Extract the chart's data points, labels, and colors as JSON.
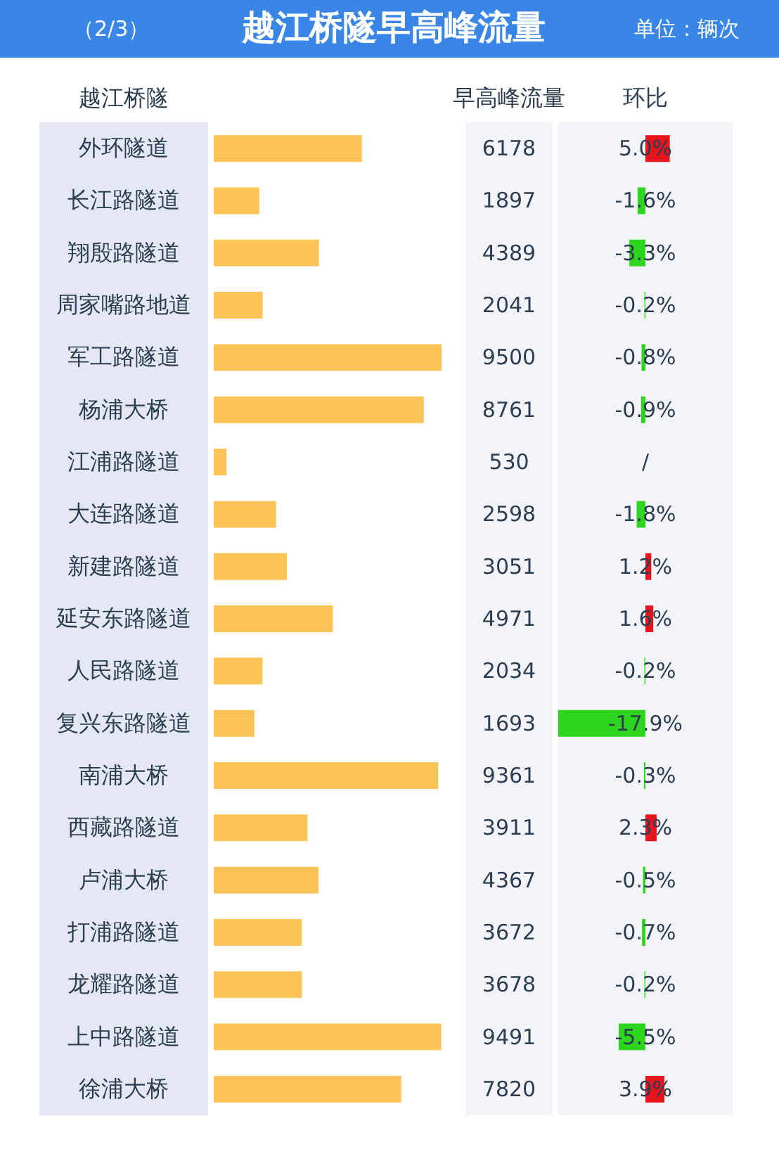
{
  "chart_data": [
    {
      "type": "bar",
      "orientation": "horizontal",
      "title": "越江桥隧早高峰流量",
      "annotations": [
        "（2/3）",
        "单位：辆次"
      ],
      "ylabel": "越江桥隧",
      "xlabel": "早高峰流量",
      "categories": [
        "外环隧道",
        "长江路隧道",
        "翔殷路隧道",
        "周家嘴路地道",
        "军工路隧道",
        "杨浦大桥",
        "江浦路隧道",
        "大连路隧道",
        "新建路隧道",
        "延安东路隧道",
        "人民路隧道",
        "复兴东路隧道",
        "南浦大桥",
        "西藏路隧道",
        "卢浦大桥",
        "打浦路隧道",
        "龙耀路隧道",
        "上中路隧道",
        "徐浦大桥"
      ],
      "values": [
        6178,
        1897,
        4389,
        2041,
        9500,
        8761,
        530,
        2598,
        3051,
        4971,
        2034,
        1693,
        9361,
        3911,
        4367,
        3672,
        3678,
        9491,
        7820
      ],
      "color": "#fcc357",
      "data_labels": true,
      "tick_labels": "y"
    },
    {
      "type": "bar",
      "orientation": "horizontal",
      "xlabel": "环比",
      "categories": [
        null,
        null,
        null,
        null,
        null,
        null,
        null,
        null,
        null,
        null,
        null,
        null,
        null,
        null,
        null,
        null,
        null,
        null,
        null
      ],
      "values": [
        5.0,
        -1.6,
        -3.3,
        -0.2,
        -0.8,
        -0.9,
        null,
        -1.8,
        1.2,
        1.6,
        -0.2,
        -17.9,
        -0.3,
        2.3,
        -0.5,
        -0.7,
        -0.2,
        -5.5,
        3.9
      ],
      "colors": [
        "#e8141c",
        "#2dd51e",
        "#2dd51e",
        "#2dd51e",
        "#2dd51e",
        "#2dd51e",
        null,
        "#2dd51e",
        "#e8141c",
        "#e8141c",
        "#2dd51e",
        "#2dd51e",
        "#2dd51e",
        "#e8141c",
        "#2dd51e",
        "#2dd51e",
        "#2dd51e",
        "#2dd51e",
        "#e8141c"
      ],
      "value_labels": [
        "5.0%",
        "-1.6%",
        "-3.3%",
        "-0.2%",
        "-0.8%",
        "-0.9%",
        "/",
        "-1.8%",
        "1.2%",
        "1.6%",
        "-0.2%",
        "-17.9%",
        "-0.3%",
        "2.3%",
        "-0.5%",
        "-0.7%",
        "-0.2%",
        "-5.5%",
        "3.9%"
      ],
      "tick_labels": false
    }
  ]
}
